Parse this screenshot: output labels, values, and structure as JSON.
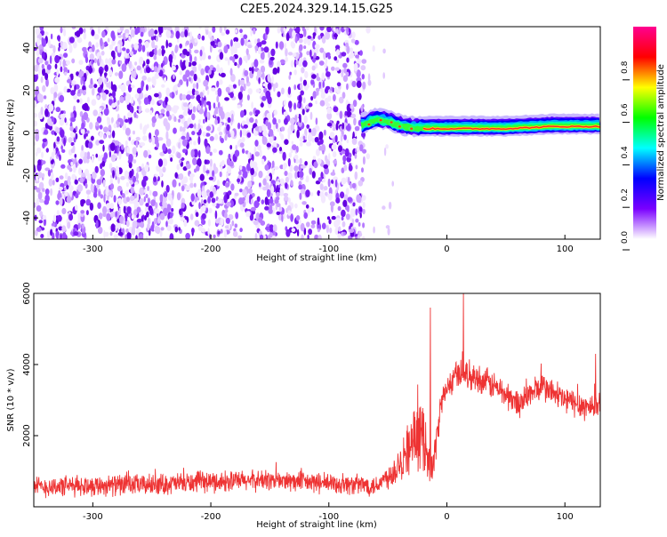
{
  "figure_title": "C2E5.2024.329.14.15.G25",
  "chart_data": [
    {
      "type": "heatmap",
      "xlabel": "Height of straight line (km)",
      "ylabel": "Frequency (Hz)",
      "xlim": [
        -350,
        130
      ],
      "ylim": [
        -50,
        50
      ],
      "x_ticks": [
        -300,
        -200,
        -100,
        0,
        100
      ],
      "x_tick_labels": [
        "-300",
        "-200",
        "-100",
        "0",
        "100"
      ],
      "y_ticks": [
        -40,
        -20,
        0,
        20,
        40
      ],
      "y_tick_labels": [
        "-40",
        "-20",
        "0",
        "20",
        "40"
      ],
      "noise_region_x": [
        -350,
        -70
      ],
      "signal_region_x": [
        -73,
        130
      ],
      "signal_trace": [
        {
          "x": -72,
          "y": 3
        },
        {
          "x": -60,
          "y": 6
        },
        {
          "x": -50,
          "y": 5
        },
        {
          "x": -40,
          "y": 3
        },
        {
          "x": -30,
          "y": 2
        },
        {
          "x": -20,
          "y": 2
        },
        {
          "x": 0,
          "y": 2
        },
        {
          "x": 50,
          "y": 2
        },
        {
          "x": 90,
          "y": 3
        },
        {
          "x": 130,
          "y": 3
        }
      ],
      "colorbar": {
        "label": "Normalized spectral amplitude",
        "range": [
          0,
          1
        ],
        "ticks": [
          0.0,
          0.2,
          0.4,
          0.6,
          0.8
        ],
        "tick_labels": [
          "0.0",
          "0.2",
          "0.4",
          "0.6",
          "0.8"
        ],
        "colors": [
          "#ffffff",
          "#7a00ff",
          "#0000ff",
          "#00ffff",
          "#00ff00",
          "#ffff00",
          "#ff0000",
          "#ff0090"
        ]
      }
    },
    {
      "type": "line",
      "xlabel": "Height of straight line (km)",
      "ylabel": "SNR (10 * v/v)",
      "xlim": [
        -350,
        130
      ],
      "ylim": [
        0,
        6000
      ],
      "x_ticks": [
        -300,
        -200,
        -100,
        0,
        100
      ],
      "x_tick_labels": [
        "-300",
        "-200",
        "-100",
        "0",
        "100"
      ],
      "y_ticks": [
        2000,
        4000,
        6000
      ],
      "y_tick_labels": [
        "2000",
        "4000",
        "6000"
      ],
      "series_color": "#ee3333",
      "envelope_x": [
        -350,
        -300,
        -250,
        -200,
        -150,
        -100,
        -60,
        -45,
        -30,
        -20,
        -12,
        -5,
        0,
        10,
        20,
        40,
        60,
        80,
        90,
        100,
        110,
        120,
        130
      ],
      "envelope_y": [
        550,
        600,
        620,
        700,
        750,
        650,
        600,
        1000,
        1800,
        2000,
        1000,
        2900,
        3300,
        3800,
        3700,
        3400,
        2900,
        3400,
        3200,
        3000,
        2900,
        2800,
        2900
      ],
      "noise_amplitude": 350,
      "peaks": [
        {
          "x": -14,
          "y": 5600
        },
        {
          "x": 14,
          "y": 6000
        },
        {
          "x": 126,
          "y": 4300
        }
      ]
    }
  ]
}
